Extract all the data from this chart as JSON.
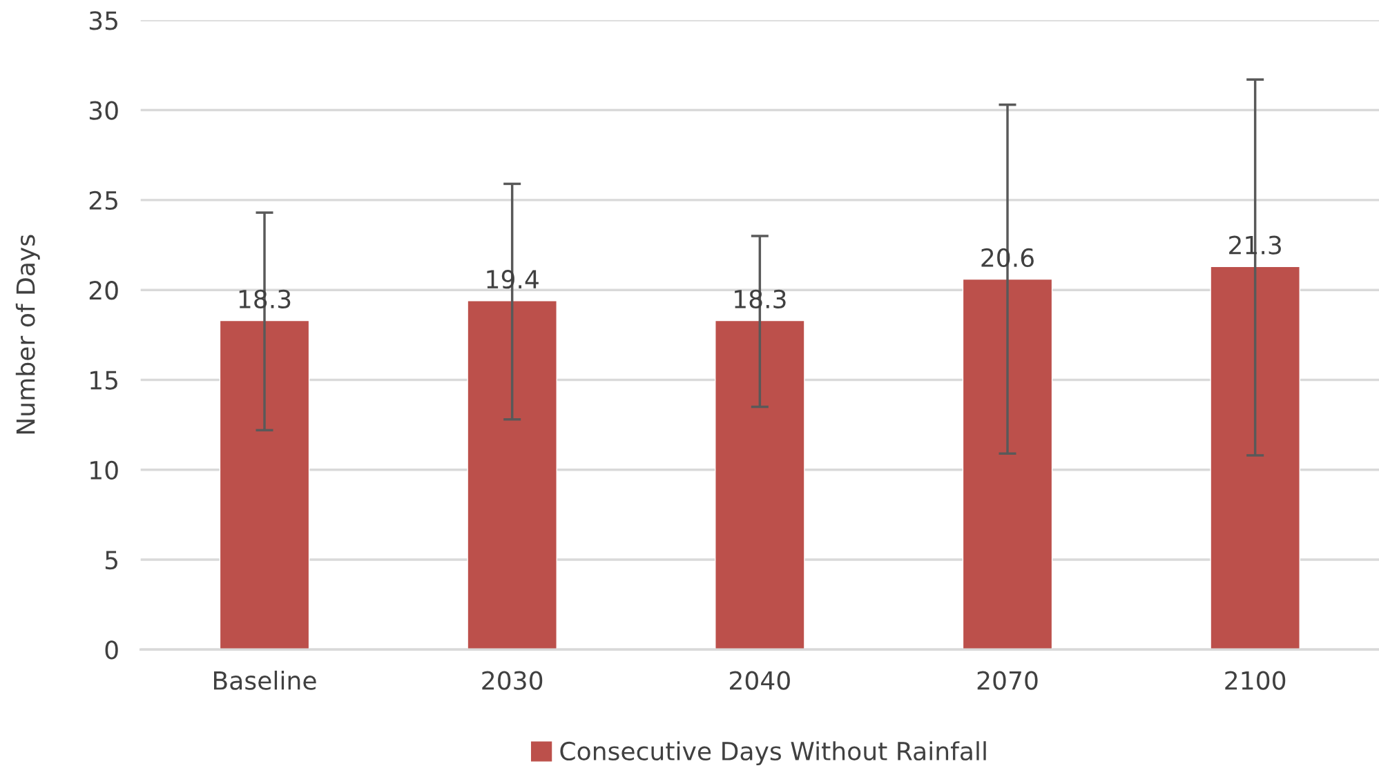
{
  "chart_data": {
    "type": "bar",
    "ylabel": "Number of Days",
    "categories": [
      "Baseline",
      "2030",
      "2040",
      "2070",
      "2100"
    ],
    "series": [
      {
        "name": "Consecutive Days Without Rainfall",
        "color": "#bc504b",
        "values": [
          18.3,
          19.4,
          18.3,
          20.6,
          21.3
        ],
        "errors": [
          [
            12.2,
            24.3
          ],
          [
            12.8,
            25.9
          ],
          [
            13.5,
            23.0
          ],
          [
            10.9,
            30.3
          ],
          [
            10.8,
            31.7
          ]
        ]
      }
    ],
    "data_labels": true,
    "ylim": [
      0,
      35
    ],
    "yticks": [
      0,
      5,
      10,
      15,
      20,
      25,
      30,
      35
    ],
    "grid": "y",
    "legend": "bottom"
  }
}
